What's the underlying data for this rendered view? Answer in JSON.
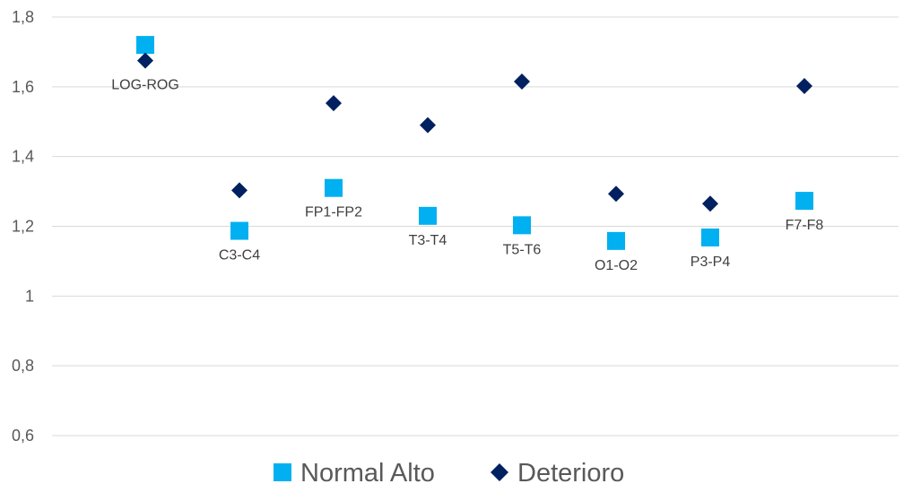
{
  "chart_data": {
    "type": "scatter",
    "categories": [
      "LOG-ROG",
      "C3-C4",
      "FP1-FP2",
      "T3-T4",
      "T5-T6",
      "O1-O2",
      "P3-P4",
      "F7-F8"
    ],
    "series": [
      {
        "name": "Normal Alto",
        "marker": "square",
        "color": "#00b0f0",
        "values": [
          1.72,
          1.187,
          1.31,
          1.23,
          1.203,
          1.158,
          1.168,
          1.273
        ]
      },
      {
        "name": "Deterioro",
        "marker": "diamond",
        "color": "#002060",
        "values": [
          1.675,
          1.303,
          1.553,
          1.49,
          1.615,
          1.293,
          1.265,
          1.602
        ]
      }
    ],
    "ylim": [
      0.6,
      1.8
    ],
    "yticks": [
      0.6,
      0.8,
      1.0,
      1.2,
      1.4,
      1.6,
      1.8
    ],
    "ytick_labels": [
      "0,6",
      "0,8",
      "1",
      "1,2",
      "1,4",
      "1,6",
      "1,8"
    ],
    "grid": "horizontal",
    "legend": "bottom-center",
    "title": "",
    "xlabel": "",
    "ylabel": ""
  }
}
